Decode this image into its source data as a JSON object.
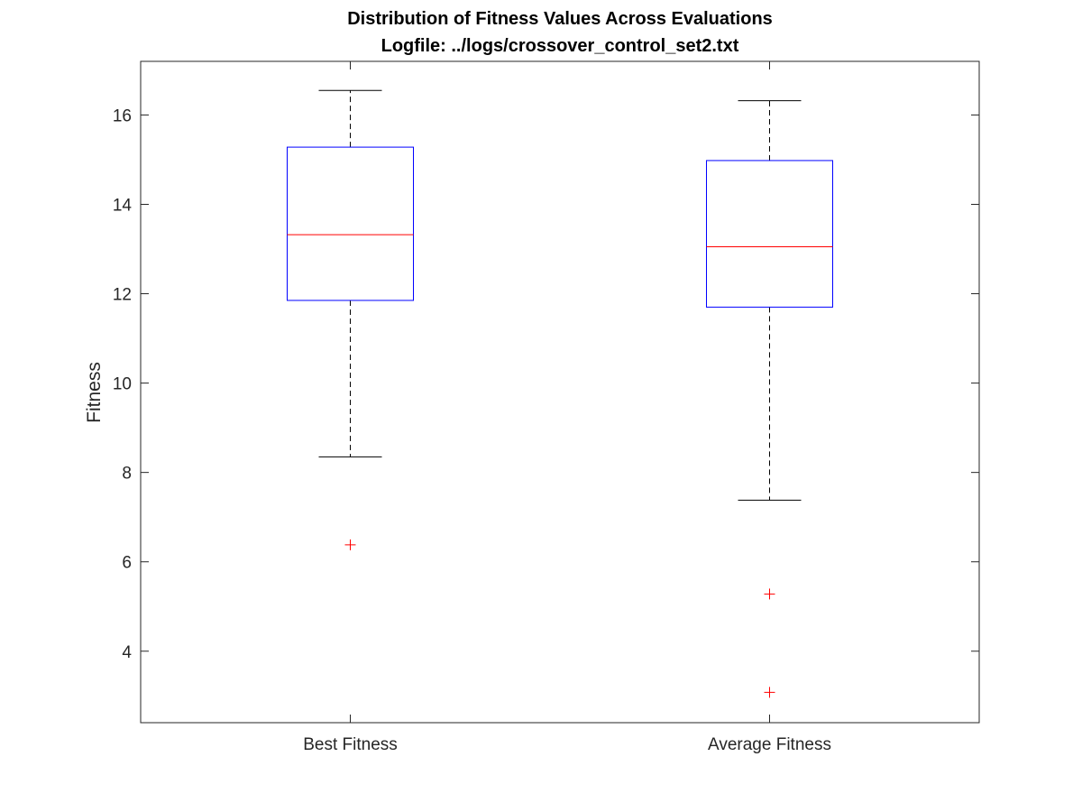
{
  "chart_data": {
    "type": "boxplot",
    "title": [
      "Distribution of Fitness Values Across Evaluations",
      "Logfile: ../logs/crossover_control_set2.txt"
    ],
    "xlabel": "",
    "ylabel": "Fitness",
    "ylim": [
      2.4,
      17.2
    ],
    "yticks": [
      4,
      6,
      8,
      10,
      12,
      14,
      16
    ],
    "grid": false,
    "box_color": "#0000ff",
    "median_color": "#ff0000",
    "whisker_color": "#000000",
    "outlier_color": "#ff0000",
    "categories": [
      "Best Fitness",
      "Average Fitness"
    ],
    "boxes": [
      {
        "category": "Best Fitness",
        "whisker_low": 8.35,
        "q1": 11.85,
        "median": 13.32,
        "q3": 15.28,
        "whisker_high": 16.55,
        "outliers": [
          6.38
        ]
      },
      {
        "category": "Average Fitness",
        "whisker_low": 7.38,
        "q1": 11.7,
        "median": 13.05,
        "q3": 14.98,
        "whisker_high": 16.32,
        "outliers": [
          5.28,
          3.08
        ]
      }
    ]
  }
}
